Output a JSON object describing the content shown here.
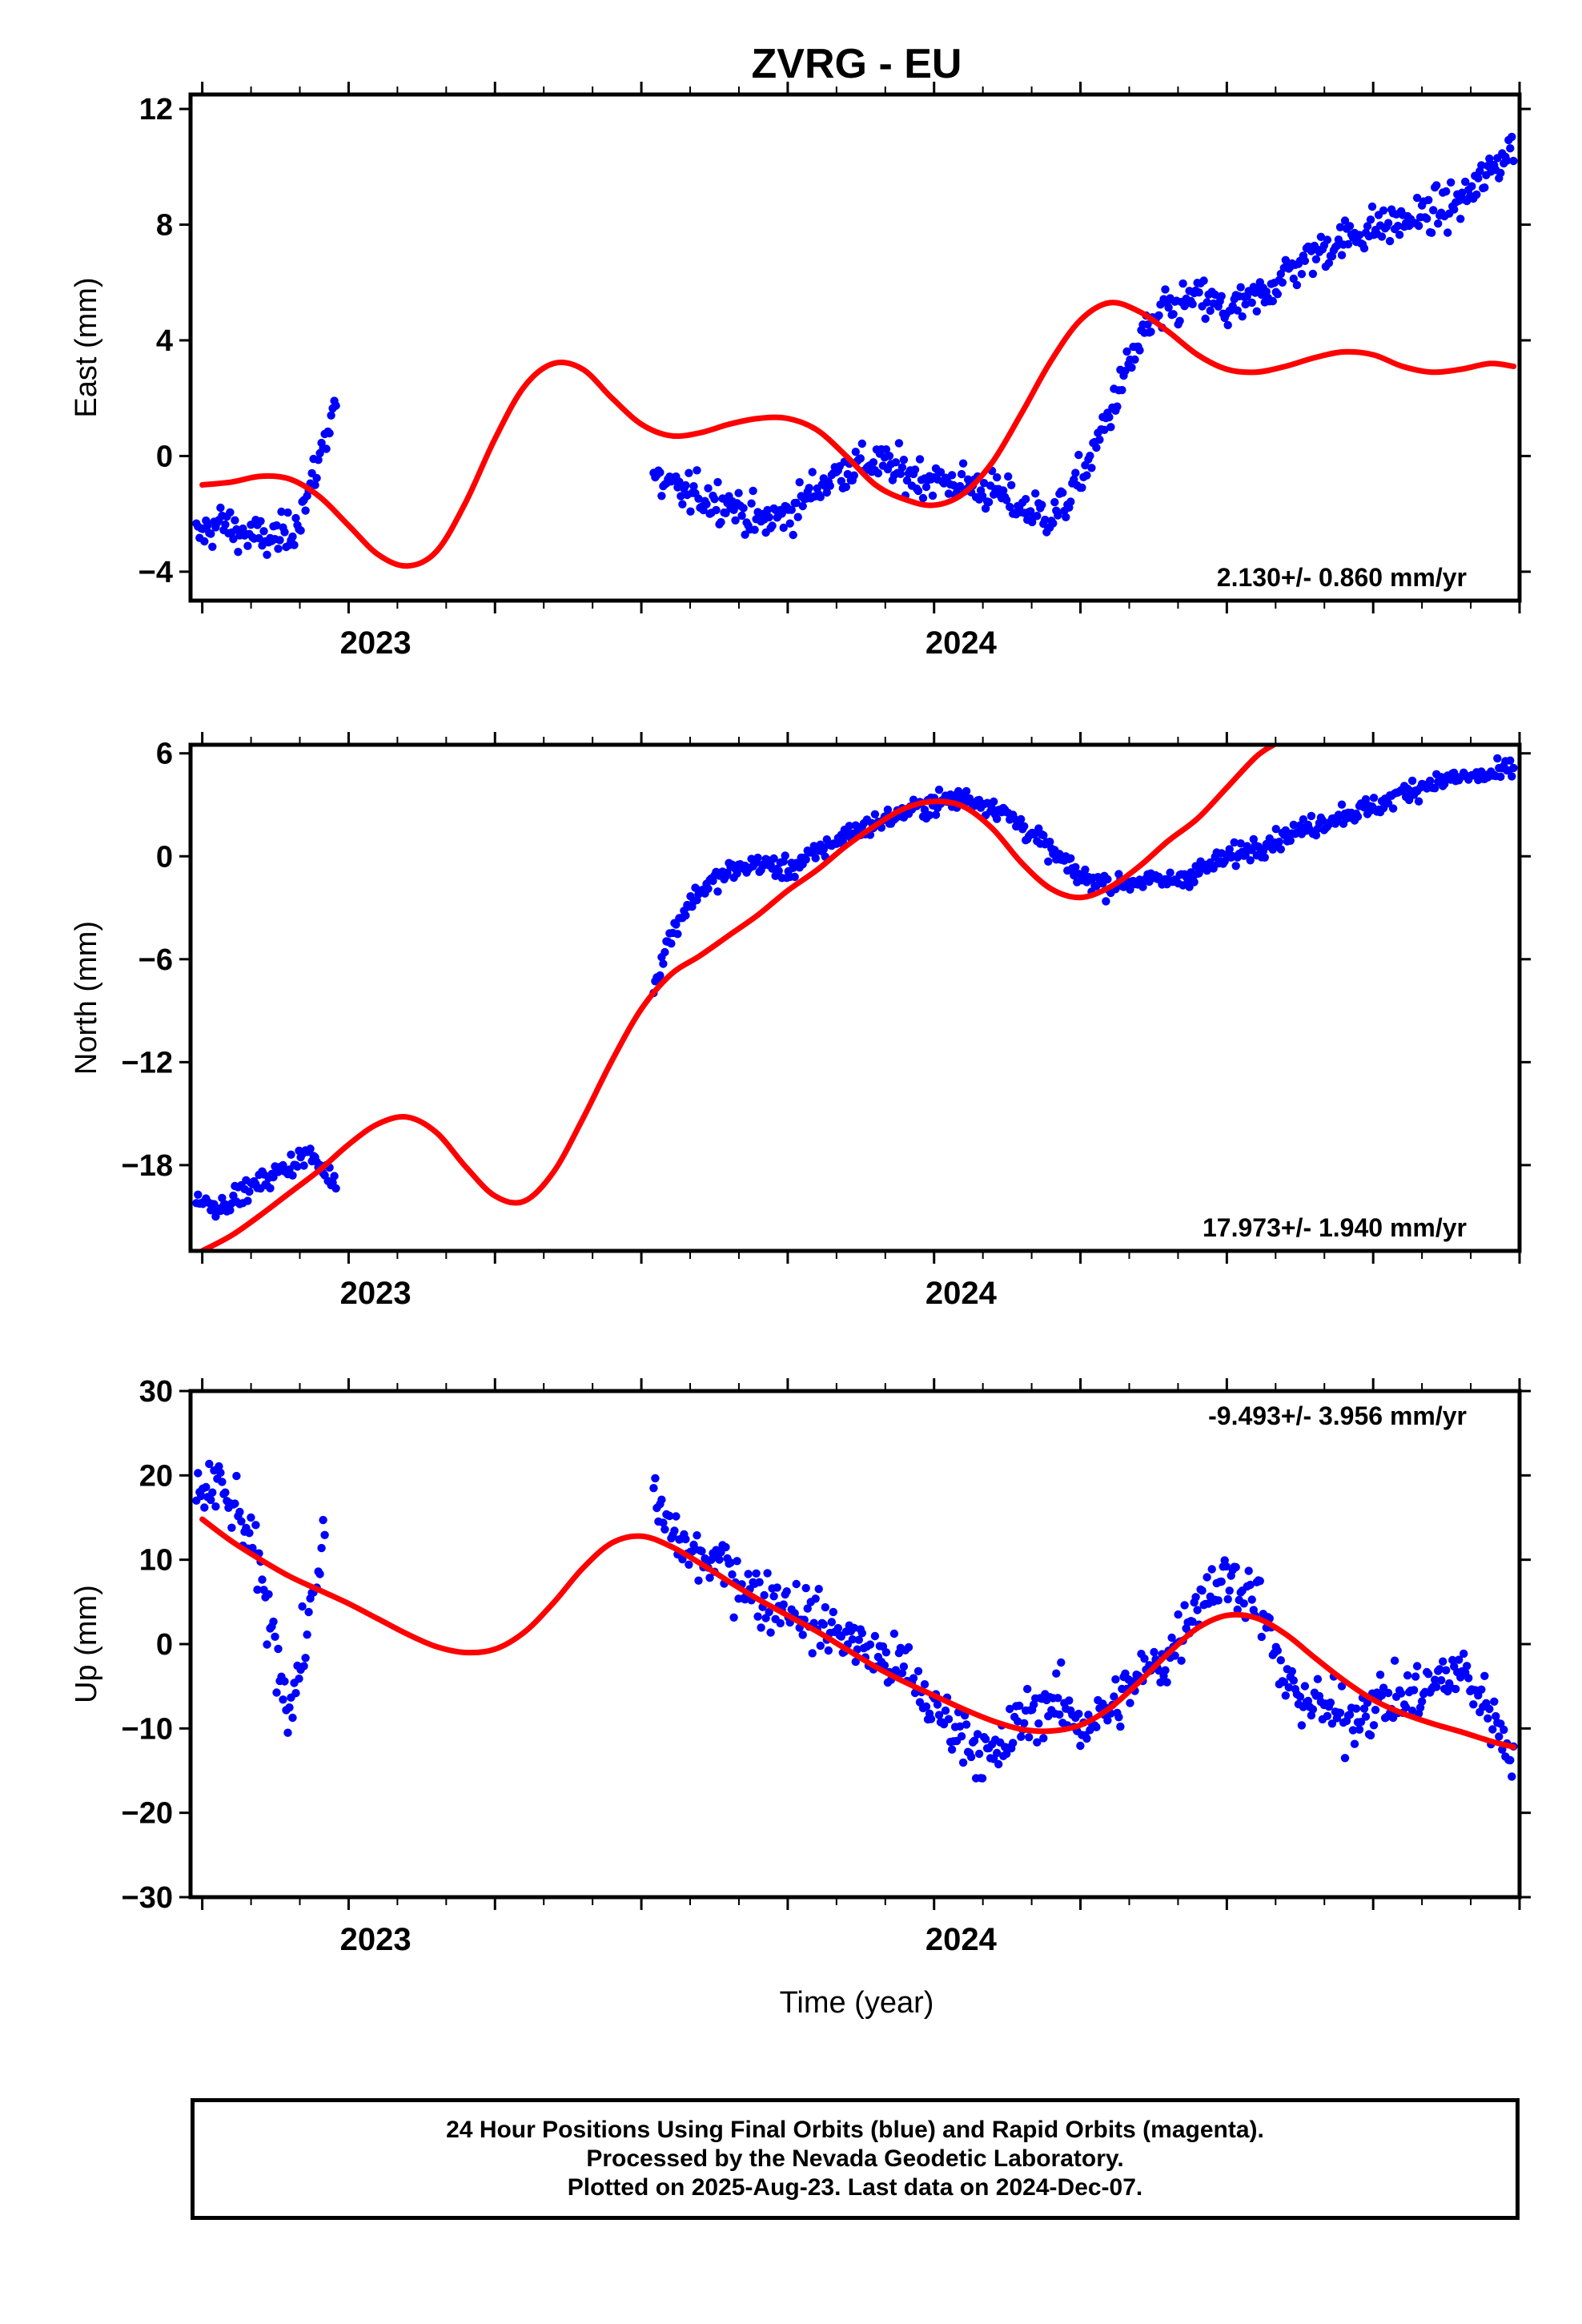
{
  "figure": {
    "title": "ZVRG - EU",
    "xlabel": "Time (year)",
    "caption_lines": [
      "24 Hour Positions Using Final Orbits (blue) and Rapid Orbits (magenta).",
      "Processed by the Nevada Geodetic Laboratory.",
      "Plotted on 2025-Aug-23. Last data on 2024-Dec-07."
    ]
  },
  "colors": {
    "data_points": "#0000ff",
    "fit_curve": "#ff0000",
    "frame": "#000000"
  },
  "chart_data": [
    {
      "type": "scatter",
      "ylabel": "East (mm)",
      "rate_label": "2.130+/- 0.860 mm/yr",
      "rate_position": "bottom-right",
      "xlim": [
        2022.73,
        2025.0
      ],
      "ylim": [
        -5,
        12.5
      ],
      "yticks": [
        -4,
        0,
        4,
        8,
        12
      ],
      "xticks": [
        2023,
        2024
      ],
      "grid": false,
      "gaps": [
        [
          2022.99,
          2023.52
        ]
      ],
      "series": [
        {
          "role": "data",
          "anchors": [
            [
              2022.74,
              -2.8
            ],
            [
              2022.78,
              -2.3
            ],
            [
              2022.82,
              -2.7
            ],
            [
              2022.86,
              -2.9
            ],
            [
              2022.9,
              -2.7
            ],
            [
              2022.93,
              -1.4
            ],
            [
              2022.96,
              0.6
            ],
            [
              2022.98,
              2.2
            ],
            [
              2023.52,
              -0.8
            ],
            [
              2023.56,
              -1.2
            ],
            [
              2023.6,
              -1.4
            ],
            [
              2023.65,
              -1.6
            ],
            [
              2023.7,
              -2.3
            ],
            [
              2023.75,
              -2.0
            ],
            [
              2023.8,
              -1.1
            ],
            [
              2023.85,
              -0.4
            ],
            [
              2023.9,
              -0.2
            ],
            [
              2023.95,
              -0.6
            ],
            [
              2024.0,
              -0.8
            ],
            [
              2024.05,
              -1.0
            ],
            [
              2024.1,
              -1.2
            ],
            [
              2024.15,
              -1.8
            ],
            [
              2024.2,
              -2.1
            ],
            [
              2024.23,
              -1.5
            ],
            [
              2024.27,
              0.0
            ],
            [
              2024.3,
              1.5
            ],
            [
              2024.33,
              3.0
            ],
            [
              2024.36,
              4.3
            ],
            [
              2024.4,
              5.0
            ],
            [
              2024.45,
              5.5
            ],
            [
              2024.5,
              5.0
            ],
            [
              2024.55,
              5.4
            ],
            [
              2024.6,
              6.3
            ],
            [
              2024.65,
              7.0
            ],
            [
              2024.7,
              7.5
            ],
            [
              2024.75,
              7.9
            ],
            [
              2024.8,
              8.1
            ],
            [
              2024.85,
              8.4
            ],
            [
              2024.9,
              8.8
            ],
            [
              2024.95,
              9.8
            ],
            [
              2024.99,
              10.8
            ]
          ],
          "scatter_mm": 0.9
        },
        {
          "role": "fit",
          "x": [
            2022.75,
            2022.8,
            2022.85,
            2022.9,
            2022.95,
            2023.0,
            2023.05,
            2023.1,
            2023.15,
            2023.2,
            2023.25,
            2023.3,
            2023.35,
            2023.4,
            2023.45,
            2023.5,
            2023.55,
            2023.6,
            2023.65,
            2023.7,
            2023.75,
            2023.8,
            2023.85,
            2023.9,
            2023.95,
            2024.0,
            2024.05,
            2024.1,
            2024.15,
            2024.2,
            2024.25,
            2024.3,
            2024.35,
            2024.4,
            2024.45,
            2024.5,
            2024.55,
            2024.6,
            2024.65,
            2024.7,
            2024.75,
            2024.8,
            2024.85,
            2024.9,
            2024.95,
            2024.99
          ],
          "y": [
            -1.0,
            -0.9,
            -0.7,
            -0.8,
            -1.4,
            -2.4,
            -3.4,
            -3.8,
            -3.3,
            -1.6,
            0.6,
            2.4,
            3.2,
            3.0,
            2.0,
            1.1,
            0.7,
            0.8,
            1.1,
            1.3,
            1.3,
            0.9,
            0.0,
            -1.0,
            -1.5,
            -1.7,
            -1.3,
            -0.2,
            1.5,
            3.3,
            4.7,
            5.3,
            5.0,
            4.3,
            3.5,
            3.0,
            2.9,
            3.1,
            3.4,
            3.6,
            3.5,
            3.1,
            2.9,
            3.0,
            3.2,
            3.1
          ]
        }
      ]
    },
    {
      "type": "scatter",
      "ylabel": "North (mm)",
      "rate_label": "17.973+/- 1.940 mm/yr",
      "rate_position": "bottom-right",
      "xlim": [
        2022.73,
        2025.0
      ],
      "ylim": [
        -23,
        6.5
      ],
      "yticks": [
        -18,
        -12,
        -6,
        0,
        6
      ],
      "xticks": [
        2023,
        2024
      ],
      "grid": false,
      "gaps": [
        [
          2022.99,
          2023.52
        ]
      ],
      "series": [
        {
          "role": "data",
          "anchors": [
            [
              2022.74,
              -20.0
            ],
            [
              2022.78,
              -20.4
            ],
            [
              2022.82,
              -19.6
            ],
            [
              2022.86,
              -18.8
            ],
            [
              2022.9,
              -18.0
            ],
            [
              2022.93,
              -17.3
            ],
            [
              2022.96,
              -18.4
            ],
            [
              2022.98,
              -19.0
            ],
            [
              2023.52,
              -7.8
            ],
            [
              2023.54,
              -5.4
            ],
            [
              2023.57,
              -3.3
            ],
            [
              2023.6,
              -2.0
            ],
            [
              2023.65,
              -0.9
            ],
            [
              2023.7,
              -0.4
            ],
            [
              2023.75,
              -0.8
            ],
            [
              2023.8,
              0.2
            ],
            [
              2023.85,
              1.3
            ],
            [
              2023.9,
              1.9
            ],
            [
              2023.95,
              2.6
            ],
            [
              2024.0,
              3.1
            ],
            [
              2024.05,
              3.4
            ],
            [
              2024.1,
              3.0
            ],
            [
              2024.15,
              1.8
            ],
            [
              2024.2,
              0.3
            ],
            [
              2024.25,
              -1.2
            ],
            [
              2024.3,
              -1.7
            ],
            [
              2024.35,
              -1.4
            ],
            [
              2024.4,
              -1.5
            ],
            [
              2024.45,
              -0.9
            ],
            [
              2024.5,
              -0.1
            ],
            [
              2024.55,
              0.6
            ],
            [
              2024.6,
              1.2
            ],
            [
              2024.65,
              1.8
            ],
            [
              2024.7,
              2.5
            ],
            [
              2024.75,
              2.8
            ],
            [
              2024.8,
              3.7
            ],
            [
              2024.85,
              4.3
            ],
            [
              2024.9,
              4.6
            ],
            [
              2024.95,
              4.7
            ],
            [
              2024.99,
              5.1
            ]
          ],
          "scatter_mm": 0.8
        },
        {
          "role": "fit",
          "x": [
            2022.75,
            2022.8,
            2022.85,
            2022.9,
            2022.95,
            2023.0,
            2023.05,
            2023.1,
            2023.15,
            2023.2,
            2023.25,
            2023.3,
            2023.35,
            2023.4,
            2023.45,
            2023.5,
            2023.55,
            2023.6,
            2023.65,
            2023.7,
            2023.75,
            2023.8,
            2023.85,
            2023.9,
            2023.95,
            2024.0,
            2024.05,
            2024.1,
            2024.15,
            2024.2,
            2024.25,
            2024.3,
            2024.35,
            2024.4,
            2024.45,
            2024.5,
            2024.55,
            2024.58
          ],
          "y": [
            -23.0,
            -22.1,
            -20.9,
            -19.6,
            -18.3,
            -16.8,
            -15.6,
            -15.2,
            -16.1,
            -18.1,
            -19.8,
            -20.1,
            -18.4,
            -15.3,
            -11.9,
            -8.9,
            -6.9,
            -5.8,
            -4.6,
            -3.4,
            -2.0,
            -0.8,
            0.6,
            1.8,
            2.8,
            3.2,
            2.9,
            1.6,
            -0.4,
            -1.9,
            -2.4,
            -1.8,
            -0.6,
            0.9,
            2.2,
            4.0,
            5.8,
            6.5
          ]
        }
      ]
    },
    {
      "type": "scatter",
      "ylabel": "Up (mm)",
      "rate_label": "-9.493+/- 3.956 mm/yr",
      "rate_position": "top-right",
      "xlim": [
        2022.73,
        2025.0
      ],
      "ylim": [
        -30,
        30
      ],
      "yticks": [
        -30,
        -20,
        -10,
        0,
        10,
        20,
        30
      ],
      "xticks": [
        2023,
        2024
      ],
      "grid": false,
      "gaps": [
        [
          2022.99,
          2023.52
        ]
      ],
      "series": [
        {
          "role": "data",
          "anchors": [
            [
              2022.74,
              18.0
            ],
            [
              2022.78,
              18.5
            ],
            [
              2022.82,
              14.0
            ],
            [
              2022.85,
              8.0
            ],
            [
              2022.88,
              -2.0
            ],
            [
              2022.9,
              -8.0
            ],
            [
              2022.93,
              2.0
            ],
            [
              2022.96,
              14.0
            ],
            [
              2023.52,
              16.5
            ],
            [
              2023.56,
              12.5
            ],
            [
              2023.6,
              10.0
            ],
            [
              2023.65,
              9.0
            ],
            [
              2023.7,
              5.5
            ],
            [
              2023.75,
              5.0
            ],
            [
              2023.8,
              2.5
            ],
            [
              2023.85,
              1.0
            ],
            [
              2023.9,
              -1.5
            ],
            [
              2023.95,
              -3.0
            ],
            [
              2024.0,
              -8.0
            ],
            [
              2024.05,
              -10.5
            ],
            [
              2024.1,
              -14.0
            ],
            [
              2024.15,
              -9.0
            ],
            [
              2024.2,
              -6.5
            ],
            [
              2024.25,
              -9.5
            ],
            [
              2024.3,
              -8.0
            ],
            [
              2024.35,
              -4.0
            ],
            [
              2024.4,
              -1.5
            ],
            [
              2024.45,
              5.5
            ],
            [
              2024.5,
              8.0
            ],
            [
              2024.55,
              6.0
            ],
            [
              2024.6,
              -5.0
            ],
            [
              2024.65,
              -7.0
            ],
            [
              2024.7,
              -9.0
            ],
            [
              2024.75,
              -7.0
            ],
            [
              2024.8,
              -6.5
            ],
            [
              2024.85,
              -5.0
            ],
            [
              2024.9,
              -3.0
            ],
            [
              2024.95,
              -8.0
            ],
            [
              2024.99,
              -13.0
            ]
          ],
          "scatter_mm": 4.5
        },
        {
          "role": "fit",
          "x": [
            2022.75,
            2022.8,
            2022.85,
            2022.9,
            2022.95,
            2023.0,
            2023.05,
            2023.1,
            2023.15,
            2023.2,
            2023.25,
            2023.3,
            2023.35,
            2023.4,
            2023.45,
            2023.5,
            2023.55,
            2023.6,
            2023.65,
            2023.7,
            2023.75,
            2023.8,
            2023.85,
            2023.9,
            2023.95,
            2024.0,
            2024.05,
            2024.1,
            2024.15,
            2024.2,
            2024.25,
            2024.3,
            2024.35,
            2024.4,
            2024.45,
            2024.5,
            2024.55,
            2024.6,
            2024.65,
            2024.7,
            2024.75,
            2024.8,
            2024.85,
            2024.9,
            2024.95,
            2024.99
          ],
          "y": [
            14.8,
            12.2,
            10.0,
            8.0,
            6.4,
            4.8,
            3.0,
            1.2,
            -0.3,
            -1.0,
            -0.6,
            1.4,
            4.9,
            9.0,
            12.0,
            12.8,
            11.6,
            9.6,
            7.4,
            5.3,
            3.4,
            1.5,
            -0.6,
            -2.7,
            -4.5,
            -6.1,
            -7.7,
            -9.1,
            -10.1,
            -10.3,
            -9.6,
            -7.6,
            -4.5,
            -1.1,
            1.9,
            3.4,
            3.1,
            1.2,
            -1.6,
            -4.3,
            -6.6,
            -8.2,
            -9.4,
            -10.4,
            -11.5,
            -12.2
          ]
        }
      ]
    }
  ]
}
